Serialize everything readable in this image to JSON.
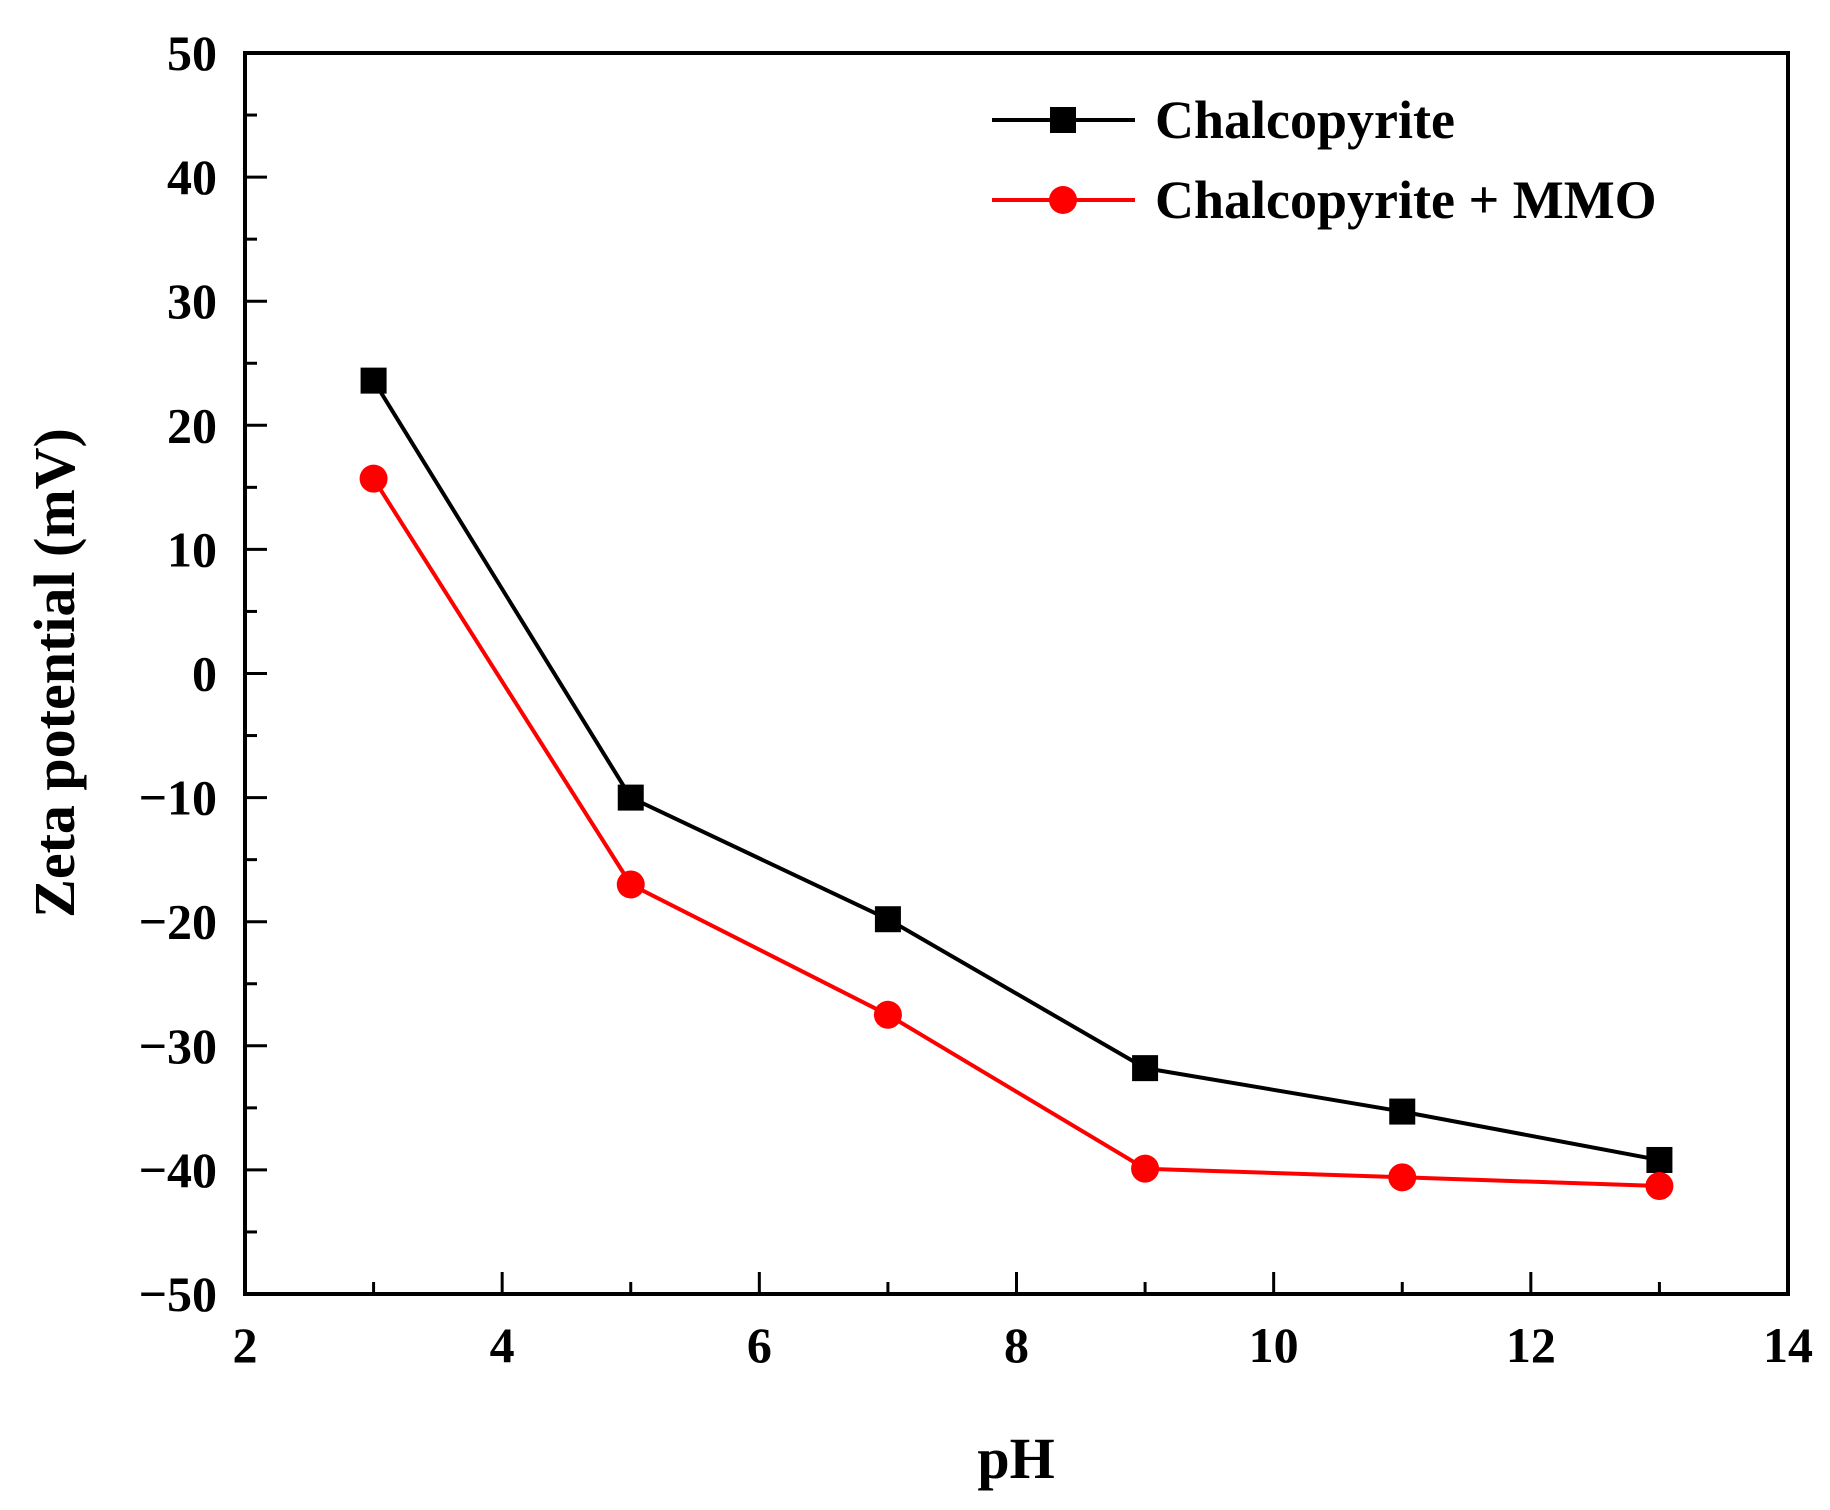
{
  "chart_data": {
    "type": "line",
    "title": "",
    "xlabel": "pH",
    "ylabel": "Zeta potential (mV)",
    "xlim": [
      2,
      14
    ],
    "ylim": [
      -50,
      50
    ],
    "xticks": [
      2,
      4,
      6,
      8,
      10,
      12,
      14
    ],
    "yticks": [
      50,
      40,
      30,
      20,
      10,
      0,
      -10,
      -20,
      -30,
      -40,
      -50
    ],
    "ytick_labels": [
      "50",
      "40",
      "30",
      "20",
      "10",
      "0",
      "−10",
      "−20",
      "−30",
      "−40",
      "−50"
    ],
    "grid": false,
    "legend_position": "top-right",
    "x": [
      3,
      5,
      7,
      9,
      11,
      13
    ],
    "series": [
      {
        "name": "Chalcopyrite",
        "color": "#000000",
        "marker": "square",
        "values": [
          23.6,
          -10.0,
          -19.8,
          -31.8,
          -35.3,
          -39.2
        ]
      },
      {
        "name": "Chalcopyrite + MMO",
        "color": "#ff0000",
        "marker": "circle",
        "values": [
          15.7,
          -17.0,
          -27.5,
          -39.9,
          -40.6,
          -41.3
        ]
      }
    ]
  }
}
